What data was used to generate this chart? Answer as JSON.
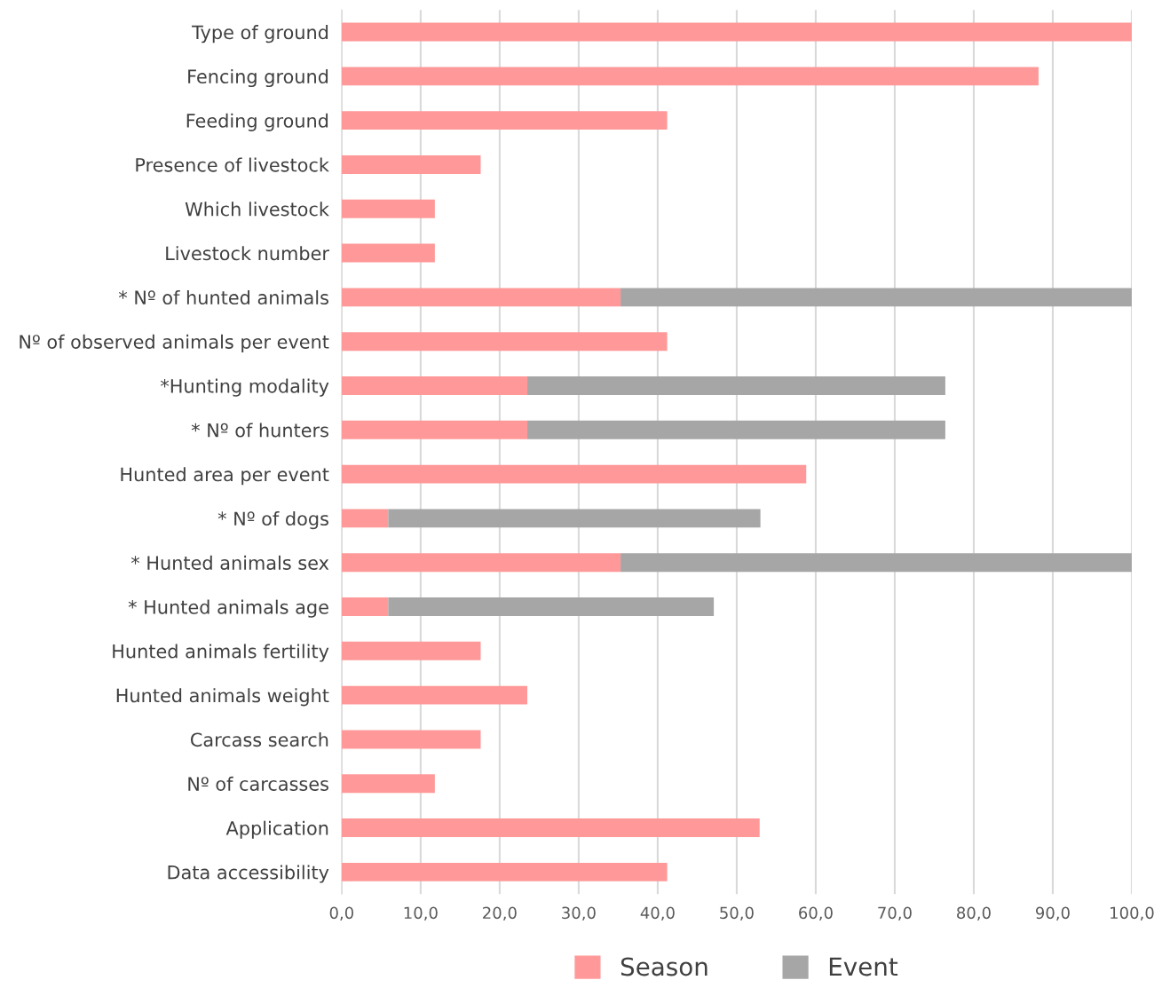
{
  "chart_data": {
    "type": "bar",
    "orientation": "horizontal",
    "stacked": true,
    "categories": [
      "Type of ground",
      "Fencing ground",
      "Feeding ground",
      "Presence of livestock",
      "Which livestock",
      "Livestock number",
      "* Nº of hunted animals",
      "Nº of observed animals per event",
      "*Hunting modality",
      "* Nº of hunters",
      "Hunted area per event",
      "* Nº of dogs",
      "* Hunted animals sex",
      "* Hunted animals age",
      "Hunted animals fertility",
      "Hunted animals weight",
      "Carcass search",
      "Nº of carcasses",
      "Application",
      "Data accessibility"
    ],
    "series": [
      {
        "name": "Season",
        "color": "#ff9999",
        "values": [
          100,
          88.2,
          41.2,
          17.6,
          11.8,
          11.8,
          35.3,
          41.2,
          23.5,
          23.5,
          58.8,
          5.9,
          35.3,
          5.9,
          17.6,
          23.5,
          17.6,
          11.8,
          52.9,
          41.2
        ]
      },
      {
        "name": "Event",
        "color": "#a6a6a6",
        "values": [
          null,
          null,
          null,
          null,
          null,
          null,
          64.7,
          null,
          52.9,
          52.9,
          null,
          47.1,
          64.7,
          41.2,
          null,
          null,
          null,
          null,
          null,
          null
        ]
      }
    ],
    "xlim": [
      0,
      100
    ],
    "xticks": [
      {
        "value": 0,
        "label": "0,0"
      },
      {
        "value": 10,
        "label": "10,0"
      },
      {
        "value": 20,
        "label": "20,0"
      },
      {
        "value": 30,
        "label": "30,0"
      },
      {
        "value": 40,
        "label": "40,0"
      },
      {
        "value": 50,
        "label": "50,0"
      },
      {
        "value": 60,
        "label": "60,0"
      },
      {
        "value": 70,
        "label": "70,0"
      },
      {
        "value": 80,
        "label": "80,0"
      },
      {
        "value": 90,
        "label": "90,0"
      },
      {
        "value": 100,
        "label": "100,0"
      }
    ],
    "grid": "x",
    "legend": "bottom"
  }
}
